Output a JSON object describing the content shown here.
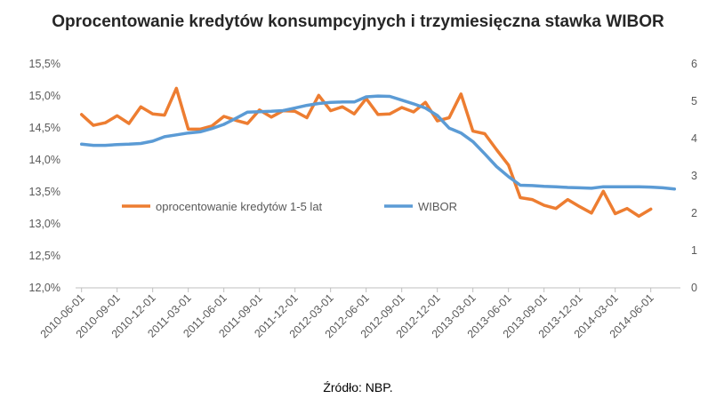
{
  "chart_data": {
    "type": "line",
    "title": "Oprocentowanie kredytów konsumpcyjnych i trzymiesięczna stawka WIBOR",
    "source": "Źródło: NBP.",
    "xlabel": "",
    "ylabel_left": "",
    "ylabel_right": "",
    "x": [
      "2010-06-01",
      "2010-07-01",
      "2010-08-01",
      "2010-09-01",
      "2010-10-01",
      "2010-11-01",
      "2010-12-01",
      "2011-01-01",
      "2011-02-01",
      "2011-03-01",
      "2011-04-01",
      "2011-05-01",
      "2011-06-01",
      "2011-07-01",
      "2011-08-01",
      "2011-09-01",
      "2011-10-01",
      "2011-11-01",
      "2011-12-01",
      "2012-01-01",
      "2012-02-01",
      "2012-03-01",
      "2012-04-01",
      "2012-05-01",
      "2012-06-01",
      "2012-07-01",
      "2012-08-01",
      "2012-09-01",
      "2012-10-01",
      "2012-11-01",
      "2012-12-01",
      "2013-01-01",
      "2013-02-01",
      "2013-03-01",
      "2013-04-01",
      "2013-05-01",
      "2013-06-01",
      "2013-07-01",
      "2013-08-01",
      "2013-09-01",
      "2013-10-01",
      "2013-11-01",
      "2013-12-01",
      "2014-01-01",
      "2014-02-01",
      "2014-03-01",
      "2014-04-01",
      "2014-05-01",
      "2014-06-01",
      "2014-07-01",
      "2014-08-01"
    ],
    "x_tick_labels": [
      "2010-06-01",
      "2010-09-01",
      "2010-12-01",
      "2011-03-01",
      "2011-06-01",
      "2011-09-01",
      "2011-12-01",
      "2012-03-01",
      "2012-06-01",
      "2012-09-01",
      "2012-12-01",
      "2013-03-01",
      "2013-06-01",
      "2013-09-01",
      "2013-12-01",
      "2014-03-01",
      "2014-06-01"
    ],
    "y_left_ticks": [
      "12,0%",
      "12,5%",
      "13,0%",
      "13,5%",
      "14,0%",
      "14,5%",
      "15,0%",
      "15,5%"
    ],
    "y_left_lim": [
      12.0,
      15.5
    ],
    "y_right_ticks": [
      "0",
      "1",
      "2",
      "3",
      "4",
      "5",
      "6"
    ],
    "y_right_lim": [
      0,
      6
    ],
    "grid": false,
    "legend_position": "center",
    "series": [
      {
        "name": "oprocentowanie kredytów 1-5 lat",
        "axis": "left",
        "color": "#ED7D31",
        "values": [
          14.71,
          14.54,
          14.58,
          14.69,
          14.57,
          14.83,
          14.72,
          14.7,
          15.12,
          14.48,
          14.48,
          14.53,
          14.68,
          14.62,
          14.57,
          14.78,
          14.67,
          14.77,
          14.76,
          14.66,
          15.01,
          14.77,
          14.83,
          14.72,
          14.96,
          14.71,
          14.72,
          14.82,
          14.75,
          14.9,
          14.61,
          14.66,
          15.03,
          14.45,
          14.41,
          14.16,
          13.92,
          13.41,
          13.38,
          13.29,
          13.24,
          13.38,
          13.27,
          13.17,
          13.51,
          13.16,
          13.24,
          13.12,
          13.23,
          null,
          null
        ]
      },
      {
        "name": "WIBOR",
        "axis": "right",
        "color": "#5B9BD5",
        "values": [
          3.85,
          3.82,
          3.82,
          3.84,
          3.85,
          3.87,
          3.93,
          4.05,
          4.1,
          4.15,
          4.18,
          4.27,
          4.38,
          4.54,
          4.71,
          4.72,
          4.73,
          4.75,
          4.82,
          4.89,
          4.94,
          4.97,
          4.98,
          4.98,
          5.12,
          5.14,
          5.13,
          5.03,
          4.93,
          4.82,
          4.62,
          4.28,
          4.15,
          3.92,
          3.59,
          3.25,
          2.98,
          2.75,
          2.74,
          2.72,
          2.71,
          2.69,
          2.68,
          2.67,
          2.71,
          2.71,
          2.71,
          2.71,
          2.7,
          2.68,
          2.65
        ]
      }
    ]
  }
}
